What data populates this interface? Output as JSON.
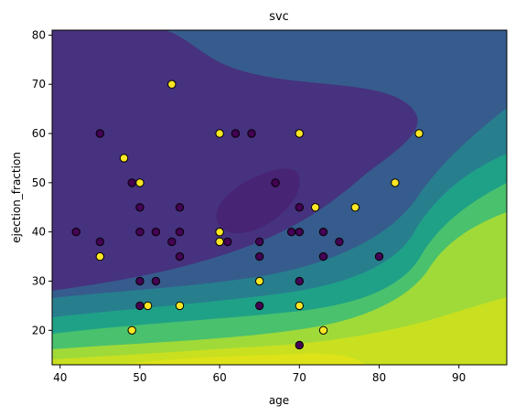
{
  "chart_data": {
    "type": "scatter",
    "title": "svc",
    "xlabel": "age",
    "ylabel": "ejection_fraction",
    "xlim": [
      39,
      96
    ],
    "ylim": [
      13,
      81
    ],
    "xticks": [
      40,
      50,
      60,
      70,
      80,
      90
    ],
    "yticks": [
      20,
      30,
      40,
      50,
      60,
      70,
      80
    ],
    "grid": false,
    "background": "filled decision-function contours (viridis)",
    "colors": {
      "class_0": "#440154",
      "class_1": "#fde725",
      "contour_levels": [
        "#46327e",
        "#365c8d",
        "#277f8e",
        "#1fa187",
        "#4ac16d",
        "#a0da39",
        "#fde725"
      ]
    },
    "series": [
      {
        "class": 0,
        "color": "#440154",
        "points": [
          [
            42,
            40
          ],
          [
            45,
            60
          ],
          [
            45,
            38
          ],
          [
            49,
            50
          ],
          [
            50,
            45
          ],
          [
            50,
            40
          ],
          [
            50,
            30
          ],
          [
            50,
            25
          ],
          [
            52,
            40
          ],
          [
            52,
            30
          ],
          [
            54,
            38
          ],
          [
            55,
            45
          ],
          [
            55,
            40
          ],
          [
            55,
            35
          ],
          [
            61,
            38
          ],
          [
            62,
            60
          ],
          [
            64,
            60
          ],
          [
            65,
            38
          ],
          [
            65,
            35
          ],
          [
            65,
            25
          ],
          [
            67,
            50
          ],
          [
            69,
            40
          ],
          [
            70,
            45
          ],
          [
            70,
            40
          ],
          [
            70,
            30
          ],
          [
            70,
            17
          ],
          [
            73,
            40
          ],
          [
            73,
            35
          ],
          [
            75,
            38
          ],
          [
            80,
            35
          ]
        ]
      },
      {
        "class": 1,
        "color": "#fde725",
        "points": [
          [
            45,
            35
          ],
          [
            48,
            55
          ],
          [
            49,
            20
          ],
          [
            50,
            50
          ],
          [
            51,
            25
          ],
          [
            54,
            70
          ],
          [
            55,
            25
          ],
          [
            60,
            60
          ],
          [
            60,
            40
          ],
          [
            60,
            38
          ],
          [
            65,
            30
          ],
          [
            70,
            60
          ],
          [
            70,
            25
          ],
          [
            72,
            45
          ],
          [
            73,
            20
          ],
          [
            77,
            45
          ],
          [
            82,
            50
          ],
          [
            85,
            60
          ]
        ]
      }
    ]
  }
}
